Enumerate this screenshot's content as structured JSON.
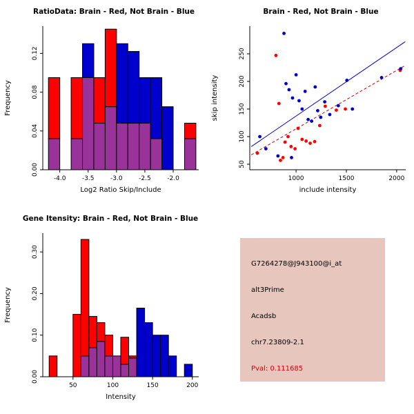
{
  "figure": {
    "background": "#ffffff"
  },
  "colors": {
    "red": "#FF0000",
    "blue": "#0000CD",
    "overlap": "#993399",
    "axis": "#000000"
  },
  "chart_data": [
    {
      "id": "ratio_histogram",
      "type": "bar",
      "title": "RatioData: Brain - Red, Not Brain - Blue",
      "xlabel": "Log2 Ratio Skip/Include",
      "ylabel": "Frequency",
      "xlim": [
        -4.3,
        -1.55
      ],
      "ylim": [
        0,
        0.148
      ],
      "xticks": [
        "-4.0",
        "-3.5",
        "-3.0",
        "-2.5",
        "-2.0"
      ],
      "xtick_values": [
        -4.0,
        -3.5,
        -3.0,
        -2.5,
        -2.0
      ],
      "yticks": [
        "0.00",
        "0.04",
        "0.08",
        "0.12"
      ],
      "ytick_values": [
        0,
        0.04,
        0.08,
        0.12
      ],
      "bin_width": 0.2,
      "bins_left": [
        -4.2,
        -4.0,
        -3.8,
        -3.6,
        -3.4,
        -3.2,
        -3.0,
        -2.8,
        -2.6,
        -2.4,
        -2.2,
        -2.0,
        -1.8
      ],
      "overlap_color": "#993399",
      "series": [
        {
          "name": "Brain (Red)",
          "color": "#FF0000",
          "heights": [
            0.095,
            0,
            0.095,
            0.095,
            0.095,
            0.145,
            0.048,
            0.048,
            0.048,
            0.032,
            0,
            0,
            0.048
          ]
        },
        {
          "name": "Not Brain (Blue)",
          "color": "#0000CD",
          "heights": [
            0.032,
            0,
            0.032,
            0.13,
            0.048,
            0.065,
            0.13,
            0.122,
            0.095,
            0.095,
            0.065,
            0,
            0.032
          ]
        }
      ]
    },
    {
      "id": "intensity_scatter",
      "type": "scatter",
      "title": "Brain - Red, Not Brain - Blue",
      "xlabel": "include intensity",
      "ylabel": "skip intensity",
      "xlim": [
        540,
        2090
      ],
      "ylim": [
        40,
        300
      ],
      "xticks": [
        "1000",
        "1500",
        "2000"
      ],
      "xtick_values": [
        1000,
        1500,
        2000
      ],
      "yticks": [
        "50",
        "100",
        "150",
        "200",
        "250"
      ],
      "ytick_values": [
        50,
        100,
        150,
        200,
        250
      ],
      "series": [
        {
          "name": "Brain (Red)",
          "color": "#FF0000",
          "points": [
            [
              615,
              70
            ],
            [
              800,
              247
            ],
            [
              830,
              160
            ],
            [
              845,
              57
            ],
            [
              870,
              62
            ],
            [
              890,
              90
            ],
            [
              920,
              100
            ],
            [
              950,
              82
            ],
            [
              990,
              78
            ],
            [
              1020,
              115
            ],
            [
              1060,
              95
            ],
            [
              1100,
              92
            ],
            [
              1140,
              88
            ],
            [
              1185,
              91
            ],
            [
              1235,
              120
            ],
            [
              1290,
              155
            ],
            [
              1400,
              148
            ],
            [
              1490,
              150
            ],
            [
              2035,
              220
            ]
          ]
        },
        {
          "name": "Not Brain (Blue)",
          "color": "#0000CD",
          "points": [
            [
              640,
              100
            ],
            [
              700,
              78
            ],
            [
              820,
              65
            ],
            [
              880,
              287
            ],
            [
              900,
              196
            ],
            [
              930,
              185
            ],
            [
              955,
              62
            ],
            [
              965,
              170
            ],
            [
              1000,
              212
            ],
            [
              1030,
              165
            ],
            [
              1060,
              150
            ],
            [
              1090,
              182
            ],
            [
              1120,
              131
            ],
            [
              1155,
              128
            ],
            [
              1190,
              190
            ],
            [
              1215,
              147
            ],
            [
              1245,
              135
            ],
            [
              1285,
              163
            ],
            [
              1335,
              140
            ],
            [
              1420,
              156
            ],
            [
              1505,
              202
            ],
            [
              1560,
              150
            ],
            [
              1850,
              207
            ],
            [
              2040,
              223
            ]
          ]
        }
      ],
      "fit_lines": [
        {
          "name": "not-brain-fit",
          "color": "#0000CD",
          "dash": "none",
          "from": [
            555,
            82
          ],
          "to": [
            2085,
            272
          ]
        },
        {
          "name": "brain-fit",
          "color": "#CC0000",
          "dash": "4,3",
          "from": [
            555,
            67
          ],
          "to": [
            2085,
            229
          ]
        }
      ]
    },
    {
      "id": "gene_intensity_histogram",
      "type": "bar",
      "title": "Gene Itensity: Brain - Red, Not Brain - Blue",
      "xlabel": "Intensity",
      "ylabel": "Frequency",
      "xlim": [
        12,
        208
      ],
      "ylim": [
        0,
        0.345
      ],
      "xticks": [
        "50",
        "100",
        "150",
        "200"
      ],
      "xtick_values": [
        50,
        100,
        150,
        200
      ],
      "yticks": [
        "0.00",
        "0.10",
        "0.20",
        "0.30"
      ],
      "ytick_values": [
        0,
        0.1,
        0.2,
        0.3
      ],
      "bin_width": 10,
      "bins_left": [
        20,
        30,
        40,
        50,
        60,
        70,
        80,
        90,
        100,
        110,
        120,
        130,
        140,
        150,
        160,
        170,
        180,
        190
      ],
      "overlap_color": "#993399",
      "series": [
        {
          "name": "Brain (Red)",
          "color": "#FF0000",
          "heights": [
            0.05,
            0,
            0,
            0.15,
            0.33,
            0.145,
            0.13,
            0.1,
            0.05,
            0.095,
            0.05,
            0,
            0,
            0,
            0,
            0,
            0,
            0
          ]
        },
        {
          "name": "Not Brain (Blue)",
          "color": "#0000CD",
          "heights": [
            0,
            0,
            0,
            0,
            0.05,
            0.07,
            0.085,
            0.05,
            0.05,
            0.03,
            0.045,
            0.165,
            0.13,
            0.1,
            0.1,
            0.05,
            0,
            0.03
          ]
        }
      ]
    }
  ],
  "info_box": {
    "background": "#E6C6BD",
    "lines": [
      {
        "text": "G7264278@J943100@i_at",
        "color": "#000000"
      },
      {
        "text": "alt3Prime",
        "color": "#000000"
      },
      {
        "text": "Acadsb",
        "color": "#000000"
      },
      {
        "text": "chr7.23809-2.1",
        "color": "#000000"
      },
      {
        "text": "Pval: 0.111685",
        "color": "#D40000"
      }
    ]
  }
}
